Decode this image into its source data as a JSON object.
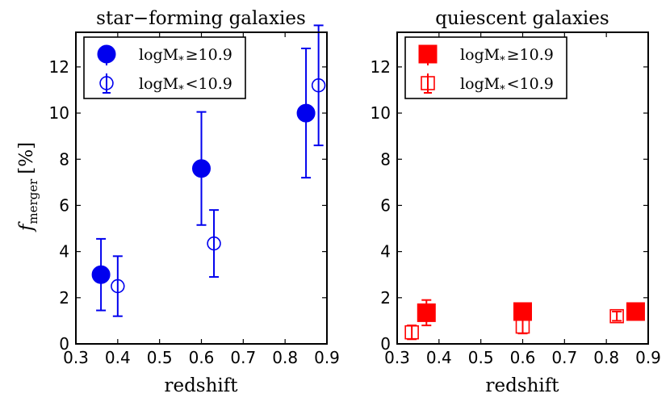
{
  "chart_data": [
    {
      "type": "scatter",
      "title": "star−forming galaxies",
      "xlabel": "redshift",
      "ylabel": "f_merger [%]",
      "ylabel_main": "f",
      "ylabel_sub": "merger",
      "ylabel_unit": "[%]",
      "xlim": [
        0.3,
        0.9
      ],
      "ylim": [
        0,
        13.5
      ],
      "xticks": [
        0.3,
        0.4,
        0.5,
        0.6,
        0.7,
        0.8,
        0.9
      ],
      "yticks": [
        0,
        2,
        4,
        6,
        8,
        10,
        12
      ],
      "color": "#0000ee",
      "marker": "circle",
      "legend_position": "upper-left",
      "series": [
        {
          "name": "logM* ≥10.9",
          "legend_main": "logM",
          "legend_sub": "*",
          "legend_rest": "≥10.9",
          "filled": true,
          "points": [
            {
              "x": 0.36,
              "y": 3.0,
              "yerr_low": 1.55,
              "yerr_high": 1.55
            },
            {
              "x": 0.6,
              "y": 7.6,
              "yerr_low": 2.45,
              "yerr_high": 2.45
            },
            {
              "x": 0.85,
              "y": 10.0,
              "yerr_low": 2.8,
              "yerr_high": 2.8
            }
          ]
        },
        {
          "name": "logM* <10.9",
          "legend_main": "logM",
          "legend_sub": "*",
          "legend_rest": "<10.9",
          "filled": false,
          "points": [
            {
              "x": 0.4,
              "y": 2.5,
              "yerr_low": 1.3,
              "yerr_high": 1.3
            },
            {
              "x": 0.63,
              "y": 4.35,
              "yerr_low": 1.45,
              "yerr_high": 1.45
            },
            {
              "x": 0.88,
              "y": 11.2,
              "yerr_low": 2.6,
              "yerr_high": 2.6
            }
          ]
        }
      ]
    },
    {
      "type": "scatter",
      "title": "quiescent galaxies",
      "xlabel": "redshift",
      "ylabel": "",
      "xlim": [
        0.3,
        0.9
      ],
      "ylim": [
        0,
        13.5
      ],
      "xticks": [
        0.3,
        0.4,
        0.5,
        0.6,
        0.7,
        0.8,
        0.9
      ],
      "yticks": [
        0,
        2,
        4,
        6,
        8,
        10,
        12
      ],
      "color": "#ff0000",
      "marker": "square",
      "legend_position": "upper-left",
      "series": [
        {
          "name": "logM* ≥10.9",
          "legend_main": "logM",
          "legend_sub": "*",
          "legend_rest": "≥10.9",
          "filled": true,
          "points": [
            {
              "x": 0.37,
              "y": 1.35,
              "yerr_low": 0.55,
              "yerr_high": 0.55
            },
            {
              "x": 0.6,
              "y": 1.4,
              "yerr_low": 0.3,
              "yerr_high": 0.3
            },
            {
              "x": 0.87,
              "y": 1.4,
              "yerr_low": 0.2,
              "yerr_high": 0.2
            }
          ]
        },
        {
          "name": "logM* <10.9",
          "legend_main": "logM",
          "legend_sub": "*",
          "legend_rest": "<10.9",
          "filled": false,
          "points": [
            {
              "x": 0.335,
              "y": 0.5,
              "yerr_low": 0.3,
              "yerr_high": 0.3
            },
            {
              "x": 0.6,
              "y": 0.75,
              "yerr_low": 0.3,
              "yerr_high": 0.3
            },
            {
              "x": 0.825,
              "y": 1.2,
              "yerr_low": 0.2,
              "yerr_high": 0.2
            }
          ]
        }
      ]
    }
  ]
}
